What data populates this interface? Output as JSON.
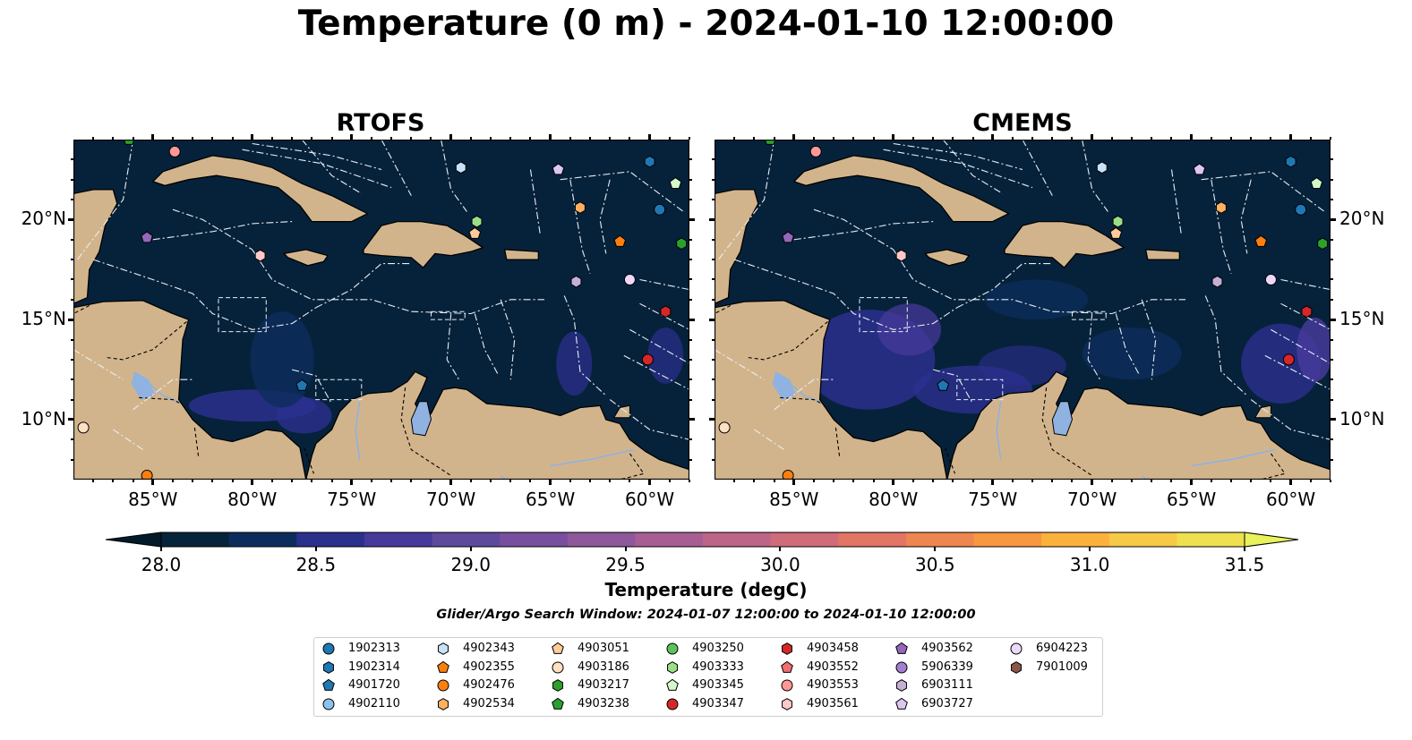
{
  "title": "Temperature (0 m) - 2024-01-10 12:00:00",
  "panels": [
    {
      "title": "RTOFS",
      "lat_labels_side": "left"
    },
    {
      "title": "CMEMS",
      "lat_labels_side": "right"
    }
  ],
  "map_extent": {
    "lon": [
      -89,
      -58
    ],
    "lat": [
      7,
      24
    ]
  },
  "lon_ticks": [
    "85°W",
    "80°W",
    "75°W",
    "70°W",
    "65°W",
    "60°W"
  ],
  "lat_ticks": [
    "20°N",
    "15°N",
    "10°N"
  ],
  "colorbar": {
    "label": "Temperature (degC)",
    "ticks": [
      "28.0",
      "28.5",
      "29.0",
      "29.5",
      "30.0",
      "30.5",
      "31.0",
      "31.5"
    ],
    "range": [
      28.0,
      31.5
    ],
    "colors": [
      "#05233a",
      "#0c2d5c",
      "#2b2f8e",
      "#463a9a",
      "#5e4a9c",
      "#774f9e",
      "#8e589a",
      "#a75f93",
      "#bd6488",
      "#d06b79",
      "#e17665",
      "#ee8650",
      "#f7973f",
      "#fcb13c",
      "#f6c946",
      "#eee04f"
    ],
    "extend": "both",
    "under_color": "#021a2a",
    "over_color": "#e9f25a"
  },
  "search_window": "Glider/Argo Search Window: 2024-01-07 12:00:00 to 2024-01-10 12:00:00",
  "land_color": "#d2b48c",
  "ocean_color": "#06223a",
  "lake_color": "#8fb2e0",
  "legend": [
    {
      "id": "1902313",
      "marker": "circle",
      "color": "#1f77b4"
    },
    {
      "id": "1902314",
      "marker": "hexagon",
      "color": "#1f77b4"
    },
    {
      "id": "4901720",
      "marker": "pentagon",
      "color": "#1f77b4"
    },
    {
      "id": "4902110",
      "marker": "circle",
      "color": "#8ec1ea"
    },
    {
      "id": "4902343",
      "marker": "hexagon",
      "color": "#c8e3f7"
    },
    {
      "id": "4902355",
      "marker": "pentagon",
      "color": "#ff7f0e"
    },
    {
      "id": "4902476",
      "marker": "circle",
      "color": "#ff7f0e"
    },
    {
      "id": "4902534",
      "marker": "hexagon",
      "color": "#ffb060"
    },
    {
      "id": "4903051",
      "marker": "pentagon",
      "color": "#ffcc99"
    },
    {
      "id": "4903186",
      "marker": "circle",
      "color": "#ffe0c0"
    },
    {
      "id": "4903217",
      "marker": "hexagon",
      "color": "#2ca02c"
    },
    {
      "id": "4903238",
      "marker": "pentagon",
      "color": "#2ca02c"
    },
    {
      "id": "4903250",
      "marker": "circle",
      "color": "#5cc35c"
    },
    {
      "id": "4903333",
      "marker": "hexagon",
      "color": "#98df8a"
    },
    {
      "id": "4903345",
      "marker": "pentagon",
      "color": "#d4f7cc"
    },
    {
      "id": "4903347",
      "marker": "circle",
      "color": "#d62728"
    },
    {
      "id": "4903458",
      "marker": "hexagon",
      "color": "#d62728"
    },
    {
      "id": "4903552",
      "marker": "pentagon",
      "color": "#f07070"
    },
    {
      "id": "4903553",
      "marker": "circle",
      "color": "#ff9896"
    },
    {
      "id": "4903561",
      "marker": "hexagon",
      "color": "#ffc8c8"
    },
    {
      "id": "4903562",
      "marker": "pentagon",
      "color": "#9467bd"
    },
    {
      "id": "5906339",
      "marker": "circle",
      "color": "#a47fd0"
    },
    {
      "id": "6903111",
      "marker": "hexagon",
      "color": "#c5b0d5"
    },
    {
      "id": "6903727",
      "marker": "pentagon",
      "color": "#dcc7f0"
    },
    {
      "id": "6904223",
      "marker": "circle",
      "color": "#eed8fa"
    },
    {
      "id": "7901009",
      "marker": "hexagon",
      "color": "#8c564b"
    }
  ],
  "floats": [
    {
      "id": "1902313",
      "lon": -59.5,
      "lat": 20.5
    },
    {
      "id": "1902314",
      "lon": -60.0,
      "lat": 22.9
    },
    {
      "id": "4901720",
      "lon": -77.5,
      "lat": 11.7
    },
    {
      "id": "4902343",
      "lon": -69.5,
      "lat": 22.6
    },
    {
      "id": "4902355",
      "lon": -61.5,
      "lat": 18.9
    },
    {
      "id": "4902534",
      "lon": -63.5,
      "lat": 20.6
    },
    {
      "id": "4903051",
      "lon": -68.8,
      "lat": 19.3
    },
    {
      "id": "4903186",
      "lon": -88.5,
      "lat": 9.6
    },
    {
      "id": "4903217",
      "lon": -58.4,
      "lat": 18.8
    },
    {
      "id": "4903238",
      "lon": -86.2,
      "lat": 24.0
    },
    {
      "id": "4903333",
      "lon": -68.7,
      "lat": 19.9
    },
    {
      "id": "4903345",
      "lon": -58.7,
      "lat": 21.8
    },
    {
      "id": "4903347",
      "lon": -60.1,
      "lat": 13.0
    },
    {
      "id": "4903458",
      "lon": -59.2,
      "lat": 15.4
    },
    {
      "id": "4903553",
      "lon": -83.9,
      "lat": 23.4
    },
    {
      "id": "4903561",
      "lon": -79.6,
      "lat": 18.2
    },
    {
      "id": "4903562",
      "lon": -85.3,
      "lat": 19.1
    },
    {
      "id": "6903727",
      "lon": -64.6,
      "lat": 22.5
    },
    {
      "id": "6903111",
      "lon": -63.7,
      "lat": 16.9
    },
    {
      "id": "6904223",
      "lon": -61.0,
      "lat": 17.0
    },
    {
      "id": "4902476",
      "lon": -85.3,
      "lat": 7.2
    }
  ]
}
